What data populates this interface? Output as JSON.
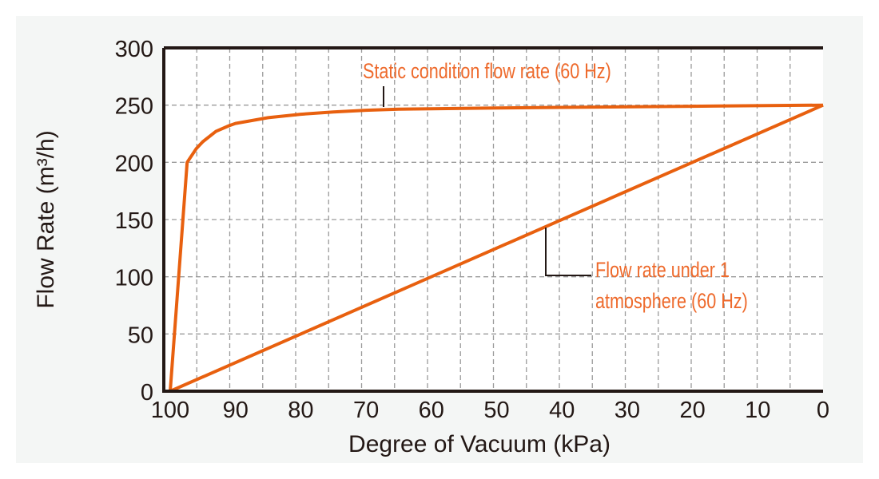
{
  "chart_data": {
    "type": "line",
    "title": "",
    "xlabel": "Degree of Vacuum (kPa)",
    "ylabel": "Flow Rate (m³/h)",
    "xlim": [
      100,
      0
    ],
    "ylim": [
      0,
      300
    ],
    "x_reversed": true,
    "grid": true,
    "x_ticks": [
      "100",
      "90",
      "80",
      "70",
      "60",
      "50",
      "40",
      "30",
      "20",
      "10",
      "0"
    ],
    "y_ticks": [
      "0",
      "50",
      "100",
      "150",
      "200",
      "250",
      "300"
    ],
    "series_color": "#e8600f",
    "annotation_color": "#ee6a2c",
    "series": [
      {
        "name": "Static condition flow rate (60 Hz)",
        "x": [
          100,
          97.4,
          96,
          95,
          93,
          91,
          90,
          85,
          80,
          75,
          70,
          65,
          50,
          40,
          20,
          0
        ],
        "y": [
          0,
          200,
          212,
          218,
          227,
          232,
          234,
          239,
          242,
          244,
          245.5,
          246.5,
          247.5,
          248,
          249,
          250
        ]
      },
      {
        "name": "Flow rate under 1 atmosphere (60 Hz)",
        "x": [
          100,
          0
        ],
        "y": [
          0,
          250
        ]
      }
    ],
    "annotations": {
      "static": "Static condition flow rate (60 Hz)",
      "atm_line1": "Flow rate under 1",
      "atm_line2": "atmosphere (60 Hz)"
    }
  }
}
